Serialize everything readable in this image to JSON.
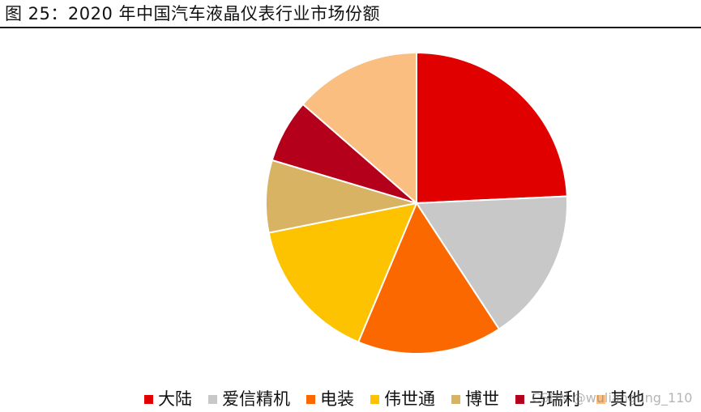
{
  "figure": {
    "title": "图 25：2020 年中国汽车液晶仪表行业市场份额"
  },
  "watermark": "CSDN @wuliangting_110",
  "chart_data": {
    "type": "pie",
    "title": "",
    "start_angle_deg": 0,
    "direction": "clockwise",
    "slices": [
      {
        "label": "大陆",
        "value": 25,
        "color": "#e00000"
      },
      {
        "label": "爱信精机",
        "value": 17,
        "color": "#c8c8c8"
      },
      {
        "label": "电装",
        "value": 16,
        "color": "#fb6800"
      },
      {
        "label": "伟世通",
        "value": 16,
        "color": "#fdc200"
      },
      {
        "label": "博世",
        "value": 8,
        "color": "#d9b364"
      },
      {
        "label": "马瑞利",
        "value": 7,
        "color": "#b5001c"
      },
      {
        "label": "其他",
        "value": 14,
        "color": "#f9be80"
      }
    ],
    "legend_position": "bottom"
  }
}
